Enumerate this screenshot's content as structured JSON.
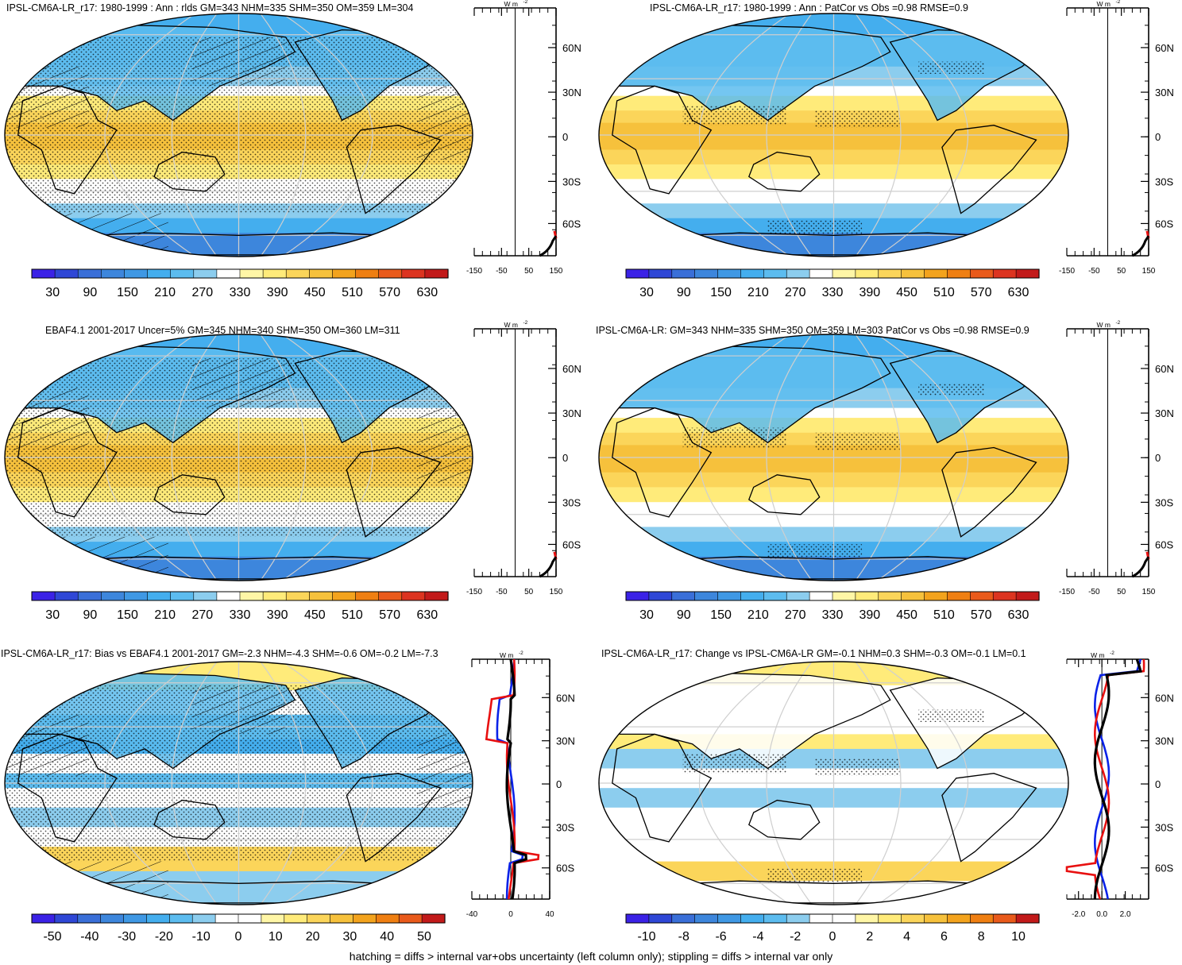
{
  "footer": "hatching = diffs > internal var+obs uncertainty (left column only); stippling = diffs > internal var only",
  "lat_labels": [
    "60N",
    "30N",
    "0",
    "30S",
    "60S"
  ],
  "profile_unit_main": "W m",
  "profile_unit_sup": "-2",
  "palette": {
    "abs": [
      "#3b22e6",
      "#2f47d6",
      "#3a6fd8",
      "#3d86dc",
      "#3f98e4",
      "#44aeee",
      "#5cbcef",
      "#8ccdee",
      "#ffffff",
      "#fff6a6",
      "#ffeb7a",
      "#fbd55a",
      "#f6c13c",
      "#f3a31d",
      "#ef7f12",
      "#e95a1b",
      "#dc3420",
      "#c21a1a"
    ],
    "diff": [
      "#3b22e6",
      "#2f47d6",
      "#3a6fd8",
      "#3d86dc",
      "#3f98e4",
      "#44aeee",
      "#5cbcef",
      "#8ccdee",
      "#ffffff",
      "#ffffff",
      "#fff6a6",
      "#ffeb7a",
      "#fbd55a",
      "#f6c13c",
      "#f3a31d",
      "#ef7f12",
      "#e95a1b",
      "#c21a1a"
    ]
  },
  "panels": [
    {
      "title": "IPSL-CM6A-LR_r17: 1980-1999 : Ann : rlds GM=343 NHM=335 SHM=350 OM=359 LM=304",
      "map_kind": "abs",
      "hatching": true,
      "stipple": "dense",
      "colorbar_ticks": [
        "30",
        "90",
        "150",
        "210",
        "270",
        "330",
        "390",
        "450",
        "510",
        "570",
        "630"
      ],
      "profile_ticks": [
        "-150",
        "-50",
        "50",
        "150"
      ],
      "profile_xlim": [
        -150,
        150
      ],
      "profile_type": "abs"
    },
    {
      "title": "IPSL-CM6A-LR_r17: 1980-1999 : Ann : PatCor vs Obs =0.98 RMSE=0.9",
      "map_kind": "abs",
      "hatching": false,
      "stipple": "sparse",
      "colorbar_ticks": [
        "30",
        "90",
        "150",
        "210",
        "270",
        "330",
        "390",
        "450",
        "510",
        "570",
        "630"
      ],
      "profile_ticks": [
        "-150",
        "-50",
        "50",
        "150"
      ],
      "profile_xlim": [
        -150,
        150
      ],
      "profile_type": "abs"
    },
    {
      "title": "EBAF4.1 2001-2017 Uncer=5% GM=345 NHM=340 SHM=350 OM=360 LM=311",
      "map_kind": "abs",
      "hatching": true,
      "stipple": "dense",
      "colorbar_ticks": [
        "30",
        "90",
        "150",
        "210",
        "270",
        "330",
        "390",
        "450",
        "510",
        "570",
        "630"
      ],
      "profile_ticks": [
        "-150",
        "-50",
        "50",
        "150"
      ],
      "profile_xlim": [
        -150,
        150
      ],
      "profile_type": "abs"
    },
    {
      "title": "IPSL-CM6A-LR: GM=343 NHM=335 SHM=350 OM=359 LM=303 PatCor vs Obs =0.98 RMSE=0.9",
      "map_kind": "abs",
      "hatching": false,
      "stipple": "sparse",
      "colorbar_ticks": [
        "30",
        "90",
        "150",
        "210",
        "270",
        "330",
        "390",
        "450",
        "510",
        "570",
        "630"
      ],
      "profile_ticks": [
        "-150",
        "-50",
        "50",
        "150"
      ],
      "profile_xlim": [
        -150,
        150
      ],
      "profile_type": "abs"
    },
    {
      "title": "IPSL-CM6A-LR_r17: Bias vs EBAF4.1 2001-2017 GM=-2.3 NHM=-4.3 SHM=-0.6 OM=-0.2 LM=-7.3",
      "map_kind": "bias",
      "hatching": true,
      "stipple": "dense",
      "colorbar_ticks": [
        "-50",
        "-40",
        "-30",
        "-20",
        "-10",
        "0",
        "10",
        "20",
        "30",
        "40",
        "50"
      ],
      "profile_ticks": [
        "-40",
        "0",
        "40"
      ],
      "profile_xlim": [
        -40,
        40
      ],
      "profile_type": "bias"
    },
    {
      "title": "IPSL-CM6A-LR_r17: Change vs IPSL-CM6A-LR GM=-0.1 NHM=0.3 SHM=-0.3 OM=-0.1 LM=0.1",
      "map_kind": "change",
      "hatching": false,
      "stipple": "sparse",
      "colorbar_ticks": [
        "-10",
        "-8",
        "-6",
        "-4",
        "-2",
        "0",
        "2",
        "4",
        "6",
        "8",
        "10"
      ],
      "profile_ticks": [
        "-2.0",
        "0.0",
        "2.0"
      ],
      "profile_xlim": [
        -3,
        4
      ],
      "profile_type": "change"
    }
  ],
  "chart_data": [
    {
      "type": "heatmap",
      "title": "IPSL-CM6A-LR_r17: 1980-1999 : Ann : rlds GM=343 NHM=335 SHM=350 OM=359 LM=304",
      "colorbar": [
        30,
        90,
        150,
        210,
        270,
        330,
        390,
        450,
        510,
        570,
        630
      ],
      "profile_xlim": [
        -150,
        150
      ],
      "profile_unit": "W m-2"
    },
    {
      "type": "heatmap",
      "title": "IPSL-CM6A-LR_r17: 1980-1999 : Ann : PatCor vs Obs =0.98 RMSE=0.9",
      "colorbar": [
        30,
        90,
        150,
        210,
        270,
        330,
        390,
        450,
        510,
        570,
        630
      ],
      "profile_xlim": [
        -150,
        150
      ],
      "profile_unit": "W m-2"
    },
    {
      "type": "heatmap",
      "title": "EBAF4.1 2001-2017 Uncer=5% GM=345 NHM=340 SHM=350 OM=360 LM=311",
      "colorbar": [
        30,
        90,
        150,
        210,
        270,
        330,
        390,
        450,
        510,
        570,
        630
      ],
      "profile_xlim": [
        -150,
        150
      ],
      "profile_unit": "W m-2"
    },
    {
      "type": "heatmap",
      "title": "IPSL-CM6A-LR: GM=343 NHM=335 SHM=350 OM=359 LM=303 PatCor vs Obs =0.98 RMSE=0.9",
      "colorbar": [
        30,
        90,
        150,
        210,
        270,
        330,
        390,
        450,
        510,
        570,
        630
      ],
      "profile_xlim": [
        -150,
        150
      ],
      "profile_unit": "W m-2"
    },
    {
      "type": "heatmap",
      "title": "IPSL-CM6A-LR_r17: Bias vs EBAF4.1 2001-2017 GM=-2.3 NHM=-4.3 SHM=-0.6 OM=-0.2 LM=-7.3",
      "colorbar": [
        -50,
        -40,
        -30,
        -20,
        -10,
        0,
        10,
        20,
        30,
        40,
        50
      ],
      "profile_xlim": [
        -40,
        40
      ],
      "profile_unit": "W m-2"
    },
    {
      "type": "heatmap",
      "title": "IPSL-CM6A-LR_r17: Change vs IPSL-CM6A-LR GM=-0.1 NHM=0.3 SHM=-0.3 OM=-0.1 LM=0.1",
      "colorbar": [
        -10,
        -8,
        -6,
        -4,
        -2,
        0,
        2,
        4,
        6,
        8,
        10
      ],
      "profile_xlim": [
        -3,
        4
      ],
      "profile_unit": "W m-2"
    }
  ]
}
